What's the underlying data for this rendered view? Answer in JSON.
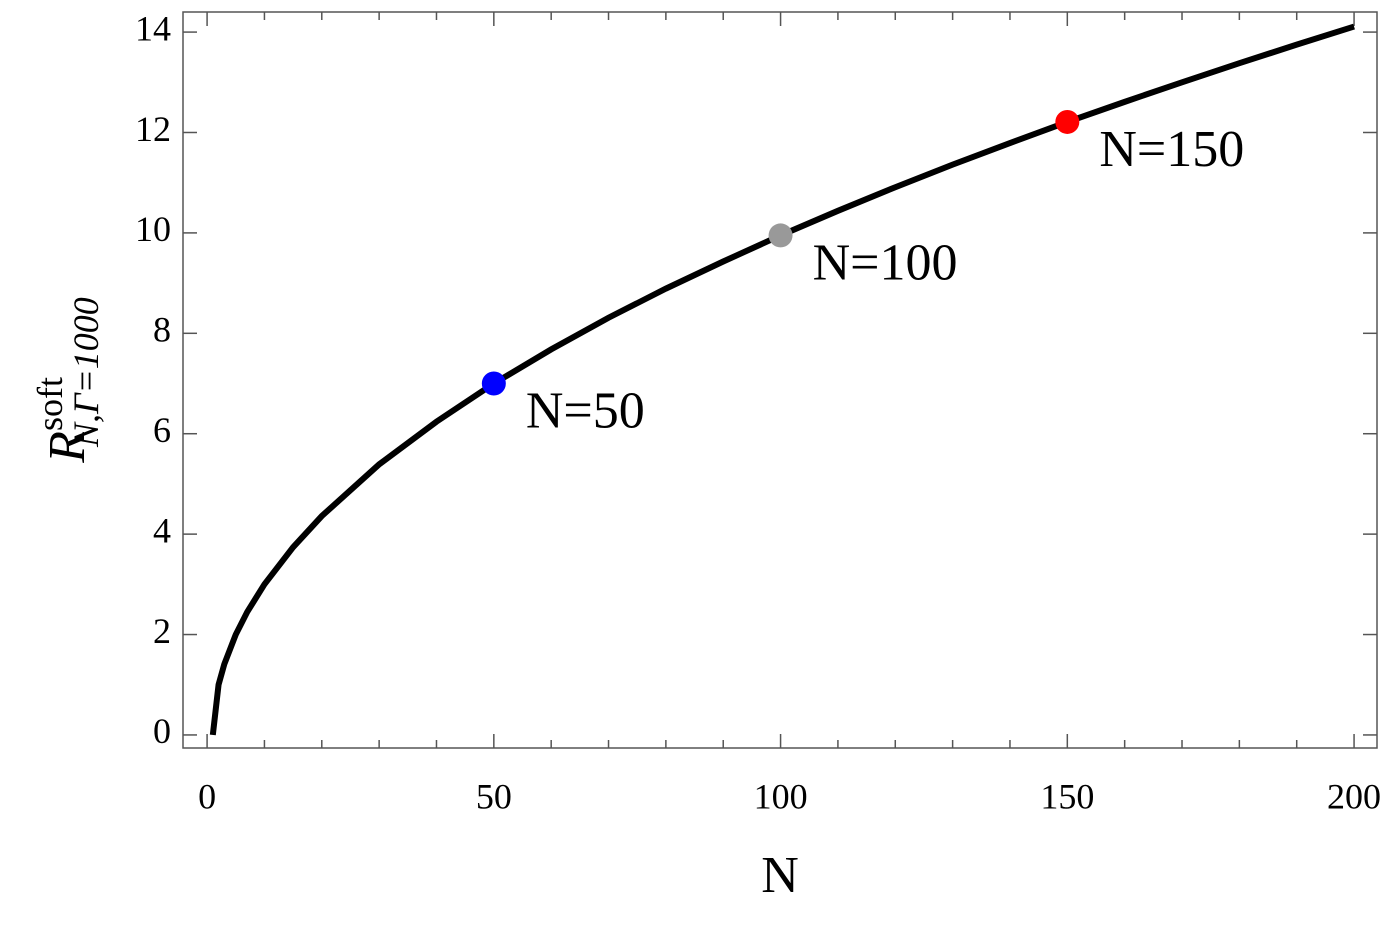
{
  "chart_data": {
    "type": "line",
    "xlabel": "N",
    "ylabel": {
      "main": "R",
      "sup": "soft",
      "sub": "N,Γ=1000"
    },
    "x": [
      1,
      2,
      3,
      5,
      7,
      10,
      15,
      20,
      30,
      40,
      50,
      60,
      70,
      80,
      90,
      100,
      110,
      120,
      130,
      140,
      150,
      160,
      170,
      180,
      190,
      200
    ],
    "series": [
      {
        "color": "#000000",
        "values": [
          0,
          1,
          1.41,
          2,
          2.45,
          3,
          3.74,
          4.36,
          5.39,
          6.24,
          7,
          7.68,
          8.31,
          8.89,
          9.43,
          9.95,
          10.44,
          10.91,
          11.36,
          11.79,
          12.21,
          12.61,
          13,
          13.38,
          13.75,
          14.11
        ]
      }
    ],
    "points": [
      {
        "label": "N=50",
        "x": 50,
        "y": 7,
        "color": "#0000ff"
      },
      {
        "label": "N=100",
        "x": 100,
        "y": 9.95,
        "color": "#999999"
      },
      {
        "label": "N=150",
        "x": 150,
        "y": 12.21,
        "color": "#ff0000"
      }
    ],
    "xlim": [
      -4.2,
      204
    ],
    "ylim": [
      -0.26,
      14.4
    ],
    "xticks": [
      0,
      50,
      100,
      150,
      200
    ],
    "xminorticks": [
      10,
      20,
      30,
      40,
      60,
      70,
      80,
      90,
      110,
      120,
      130,
      140,
      160,
      170,
      180,
      190
    ],
    "yticks": [
      0,
      2,
      4,
      6,
      8,
      10,
      12,
      14
    ]
  }
}
